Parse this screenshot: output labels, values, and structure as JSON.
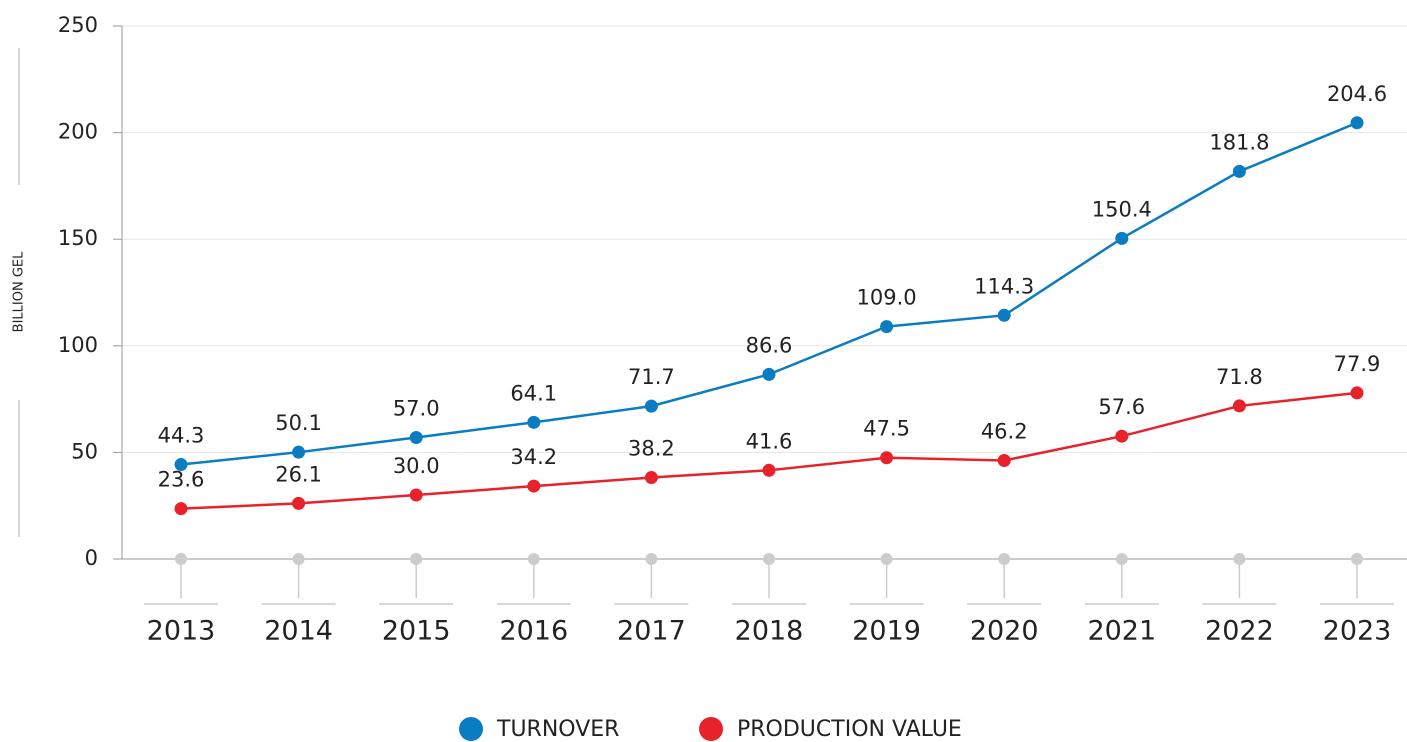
{
  "chart_data": {
    "type": "line",
    "y_axis_label": "BILLION GEL",
    "categories": [
      "2013",
      "2014",
      "2015",
      "2016",
      "2017",
      "2018",
      "2019",
      "2020",
      "2021",
      "2022",
      "2023"
    ],
    "series": [
      {
        "name": "TURNOVER",
        "color": "#0a7cc1",
        "values": [
          44.3,
          50.1,
          57.0,
          64.1,
          71.7,
          86.6,
          109.0,
          114.3,
          150.4,
          181.8,
          204.6
        ],
        "value_labels": [
          "44.3",
          "50.1",
          "57.0",
          "64.1",
          "71.7",
          "86.6",
          "109.0",
          "114.3",
          "150.4",
          "181.8",
          "204.6"
        ]
      },
      {
        "name": "PRODUCTION VALUE",
        "color": "#e8222a",
        "values": [
          23.6,
          26.1,
          30.0,
          34.2,
          38.2,
          41.6,
          47.5,
          46.2,
          57.6,
          71.8,
          77.9
        ],
        "value_labels": [
          "23.6",
          "26.1",
          "30.0",
          "34.2",
          "38.2",
          "41.6",
          "47.5",
          "46.2",
          "57.6",
          "71.8",
          "77.9"
        ]
      }
    ],
    "ylim": [
      0,
      250
    ],
    "yticks": [
      0,
      50,
      100,
      150,
      200,
      250
    ],
    "grid": true,
    "legend": "bottom"
  }
}
